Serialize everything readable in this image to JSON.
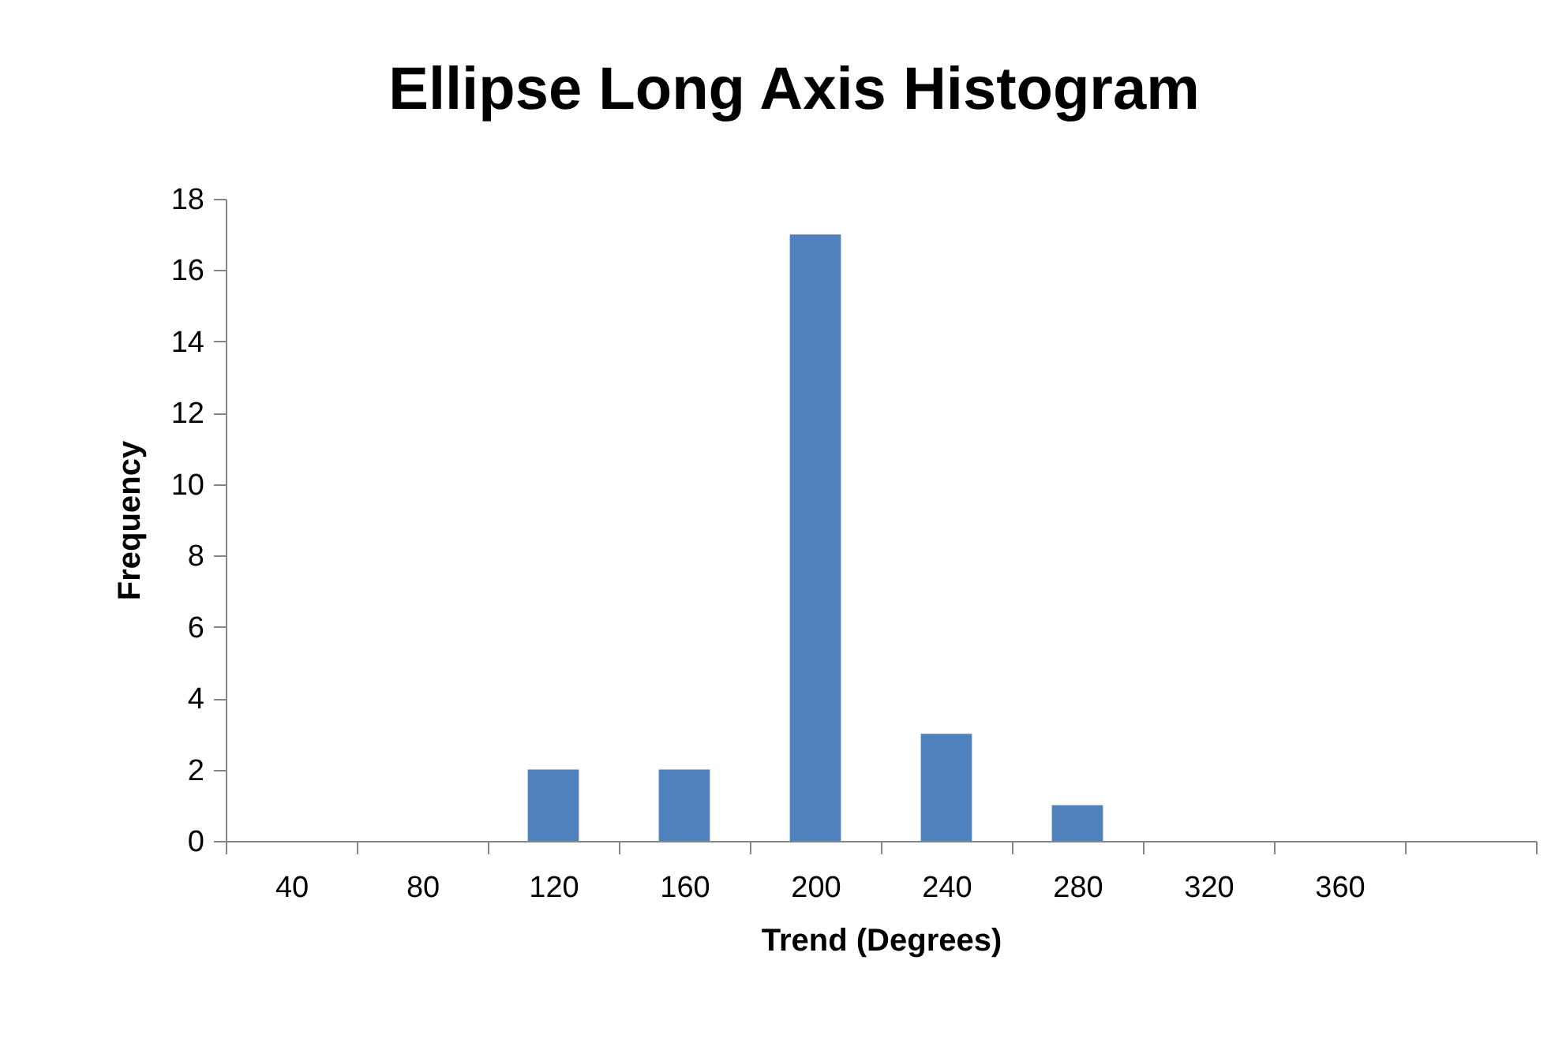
{
  "chart_data": {
    "type": "bar",
    "title": "Ellipse Long Axis Histogram",
    "xlabel": "Trend (Degrees)",
    "ylabel": "Frequency",
    "categories": [
      "40",
      "80",
      "120",
      "160",
      "200",
      "240",
      "280",
      "320",
      "360",
      null
    ],
    "values": [
      0,
      0,
      2,
      2,
      17,
      3,
      1,
      0,
      0,
      0
    ],
    "color": "#4f81bd",
    "ylim": [
      0,
      18
    ],
    "yticks": [
      0,
      2,
      4,
      6,
      8,
      10,
      12,
      14,
      16,
      18
    ],
    "grid": false
  }
}
